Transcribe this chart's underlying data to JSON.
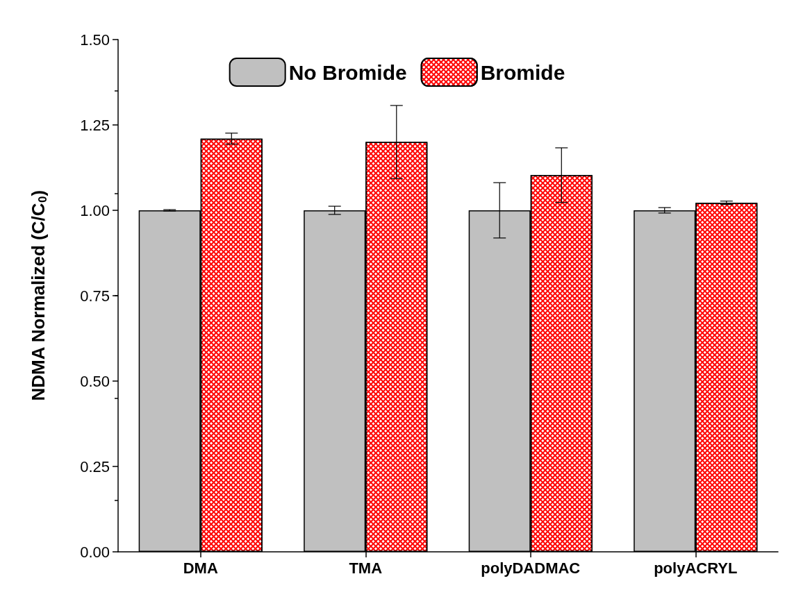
{
  "chart_data": {
    "type": "bar",
    "ylabel": "NDMA Normalized (C/C$_{0}$)",
    "categories": [
      "DMA",
      "TMA",
      "polyDADMAC",
      "polyACRYL"
    ],
    "series": [
      {
        "name": "No Bromide",
        "color": "#c0c0c0",
        "values": [
          1.0,
          1.0,
          1.0,
          1.0
        ],
        "errors": [
          0.002,
          0.012,
          0.081,
          0.008
        ]
      },
      {
        "name": "Bromide",
        "color": "#ff0000",
        "values": [
          1.21,
          1.2,
          1.103,
          1.022
        ],
        "errors": [
          0.016,
          0.107,
          0.08,
          0.005
        ]
      }
    ],
    "ylim": [
      0,
      1.5
    ],
    "yticks": [
      {
        "value": 0,
        "label": "0.00"
      },
      {
        "value": 0.25,
        "label": "0.25"
      },
      {
        "value": 0.5,
        "label": "0.50"
      },
      {
        "value": 0.75,
        "label": "0.75"
      },
      {
        "value": 1,
        "label": "1.00"
      },
      {
        "value": 1.25,
        "label": "1.25"
      },
      {
        "value": 1.5,
        "label": "1.50"
      }
    ],
    "grid": false,
    "legend": "top"
  }
}
